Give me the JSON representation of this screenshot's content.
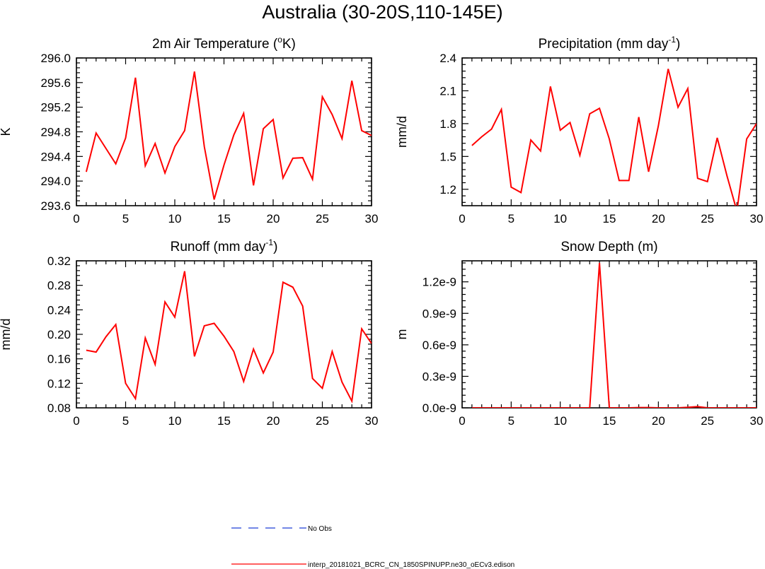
{
  "page": {
    "title": "Australia (30-20S,110-145E)"
  },
  "colors": {
    "model_line": "#ff0000",
    "obs_line": "#1f3fd6",
    "axis": "#000000"
  },
  "legend": {
    "obs_label": "No Obs",
    "model_label": "interp_20181021_BCRC_CN_1850SPINUPP.ne30_oECv3.edison"
  },
  "chart_data": [
    {
      "type": "line",
      "title": "2m Air Temperature (",
      "title_sup": "o",
      "title_after": "K)",
      "ylabel": "K",
      "xlabel": "",
      "xlim": [
        0,
        30
      ],
      "ylim": [
        293.6,
        296.0
      ],
      "xticks": [
        0,
        5,
        10,
        15,
        20,
        25,
        30
      ],
      "yticks": [
        "293.6",
        "294.0",
        "294.4",
        "294.8",
        "295.2",
        "295.6",
        "296.0"
      ],
      "series": [
        {
          "name": "interp_20181021_BCRC_CN_1850SPINUPP.ne30_oECv3.edison",
          "x": [
            1,
            2,
            3,
            4,
            5,
            6,
            7,
            8,
            9,
            10,
            11,
            12,
            13,
            14,
            15,
            16,
            17,
            18,
            19,
            20,
            21,
            22,
            23,
            24,
            25,
            26,
            27,
            28,
            29,
            30
          ],
          "values": [
            294.15,
            294.78,
            294.53,
            294.28,
            294.7,
            295.68,
            294.25,
            294.61,
            294.13,
            294.56,
            294.82,
            295.78,
            294.56,
            293.7,
            294.26,
            294.75,
            295.1,
            293.93,
            294.85,
            295.0,
            294.05,
            294.37,
            294.38,
            294.03,
            295.37,
            295.08,
            294.69,
            295.63,
            294.82,
            294.74
          ]
        }
      ]
    },
    {
      "type": "line",
      "title": "Precipitation (mm day",
      "title_sup": "-1",
      "title_after": ")",
      "ylabel": "mm/d",
      "xlabel": "",
      "xlim": [
        0,
        30
      ],
      "ylim": [
        1.05,
        2.4
      ],
      "xticks": [
        0,
        5,
        10,
        15,
        20,
        25,
        30
      ],
      "yticks": [
        "1.2",
        "1.5",
        "1.8",
        "2.1",
        "2.4"
      ],
      "series": [
        {
          "name": "interp_20181021_BCRC_CN_1850SPINUPP.ne30_oECv3.edison",
          "x": [
            1,
            2,
            3,
            4,
            5,
            6,
            7,
            8,
            9,
            10,
            11,
            12,
            13,
            14,
            15,
            16,
            17,
            18,
            19,
            20,
            21,
            22,
            23,
            24,
            25,
            26,
            27,
            28,
            29,
            30
          ],
          "values": [
            1.6,
            1.68,
            1.75,
            1.93,
            1.22,
            1.17,
            1.65,
            1.55,
            2.14,
            1.74,
            1.81,
            1.51,
            1.89,
            1.94,
            1.66,
            1.28,
            1.28,
            1.86,
            1.36,
            1.78,
            2.3,
            1.95,
            2.12,
            1.3,
            1.27,
            1.67,
            1.32,
            1.0,
            1.66,
            1.8
          ]
        }
      ]
    },
    {
      "type": "line",
      "title": "Runoff (mm day",
      "title_sup": "-1",
      "title_after": ")",
      "ylabel": "mm/d",
      "xlabel": "",
      "xlim": [
        0,
        30
      ],
      "ylim": [
        0.08,
        0.32
      ],
      "xticks": [
        0,
        5,
        10,
        15,
        20,
        25,
        30
      ],
      "yticks": [
        "0.08",
        "0.12",
        "0.16",
        "0.20",
        "0.24",
        "0.28",
        "0.32"
      ],
      "series": [
        {
          "name": "interp_20181021_BCRC_CN_1850SPINUPP.ne30_oECv3.edison",
          "x": [
            1,
            2,
            3,
            4,
            5,
            6,
            7,
            8,
            9,
            10,
            11,
            12,
            13,
            14,
            15,
            16,
            17,
            18,
            19,
            20,
            21,
            22,
            23,
            24,
            25,
            26,
            27,
            28,
            29,
            30
          ],
          "values": [
            0.174,
            0.171,
            0.196,
            0.216,
            0.12,
            0.095,
            0.194,
            0.151,
            0.253,
            0.228,
            0.303,
            0.164,
            0.214,
            0.218,
            0.197,
            0.172,
            0.123,
            0.176,
            0.137,
            0.171,
            0.285,
            0.277,
            0.246,
            0.128,
            0.112,
            0.172,
            0.122,
            0.091,
            0.209,
            0.185
          ]
        }
      ]
    },
    {
      "type": "line",
      "title": "Snow Depth (m)",
      "title_sup": "",
      "title_after": "",
      "ylabel": "m",
      "xlabel": "",
      "xlim": [
        0,
        30
      ],
      "ylim": [
        0.0,
        1.4e-09
      ],
      "xticks": [
        0,
        5,
        10,
        15,
        20,
        25,
        30
      ],
      "yticks": [
        "0.0e-9",
        "0.3e-9",
        "0.6e-9",
        "0.9e-9",
        "1.2e-9"
      ],
      "ytick_values": [
        0.0,
        3e-10,
        6e-10,
        9e-10,
        1.2e-09
      ],
      "series": [
        {
          "name": "interp_20181021_BCRC_CN_1850SPINUPP.ne30_oECv3.edison",
          "x": [
            1,
            2,
            3,
            4,
            5,
            6,
            7,
            8,
            9,
            10,
            11,
            12,
            13,
            14,
            15,
            16,
            17,
            18,
            19,
            20,
            21,
            22,
            23,
            24,
            25,
            26,
            27,
            28,
            29,
            30
          ],
          "values": [
            0,
            0,
            0,
            0,
            0,
            0,
            0,
            0,
            0,
            0,
            0,
            0,
            0,
            1.38e-09,
            0,
            0,
            0,
            3e-12,
            3e-12,
            0,
            0,
            0,
            5e-12,
            1.2e-11,
            0,
            0,
            0,
            0,
            0,
            0
          ]
        }
      ]
    }
  ]
}
